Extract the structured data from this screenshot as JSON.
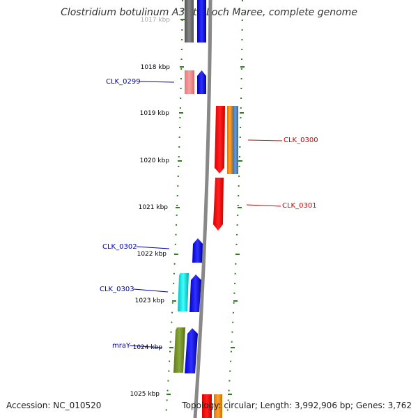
{
  "title": "Clostridium botulinum A3 str. Loch Maree, complete genome",
  "accession": "Accession: NC_010520",
  "summary": "Topology: circular; Length: 3,992,906 bp; Genes: 3,762",
  "ticks": [
    "1017 kbp",
    "1018 kbp",
    "1019 kbp",
    "1020 kbp",
    "1021 kbp",
    "1022 kbp",
    "1023 kbp",
    "1024 kbp",
    "1025 kbp"
  ],
  "gene_labels": {
    "clk0299": "CLK_0299",
    "clk0300": "CLK_0300",
    "clk0301": "CLK_0301",
    "clk0302": "CLK_0302",
    "clk0303": "CLK_0303",
    "mray": "mraY"
  },
  "colors": {
    "forward_label": "#0000aa",
    "reverse_label": "#cc0000",
    "tick": "#2e7d1f",
    "backbone": "#888888"
  }
}
